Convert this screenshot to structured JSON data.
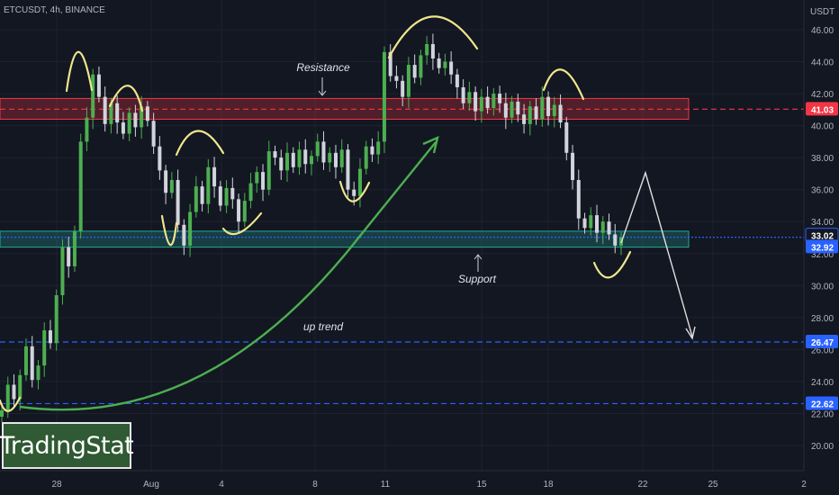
{
  "header": {
    "symbol": "ETCUSDT, 4h, BINANCE"
  },
  "brand": {
    "label": "TradingStat"
  },
  "chart_data": {
    "type": "candlestick",
    "currency": "USDT",
    "ylim": [
      18.6,
      47.4
    ],
    "y_ticks": [
      "46.00",
      "44.00",
      "42.00",
      "40.00",
      "38.00",
      "36.00",
      "34.00",
      "32.00",
      "30.00",
      "28.00",
      "26.00",
      "24.00",
      "22.00",
      "20.00"
    ],
    "x_ticks": [
      "28",
      "Aug",
      "4",
      "8",
      "11",
      "15",
      "18",
      "22",
      "25",
      "2"
    ],
    "price_levels": [
      {
        "value": 41.03,
        "label": "41.03",
        "color": "#f23645",
        "style": "dashed"
      },
      {
        "value": 33.02,
        "label": "33.02",
        "color": "#2962ff",
        "style": "dotted"
      },
      {
        "value": 32.92,
        "label": "32.92",
        "color": "#2962ff",
        "style": "none"
      },
      {
        "value": 26.47,
        "label": "26.47",
        "color": "#2962ff",
        "style": "dashed"
      },
      {
        "value": 22.62,
        "label": "22.62",
        "color": "#2962ff",
        "style": "dashed"
      }
    ],
    "zones": [
      {
        "name": "resistance",
        "from": 40.4,
        "to": 41.7,
        "color": "#f23645"
      },
      {
        "name": "support",
        "from": 32.4,
        "to": 33.4,
        "color": "#26a69a"
      }
    ],
    "annotations": {
      "resistance": "Resistance",
      "support": "Support",
      "trend": "up trend"
    },
    "close_path": [
      22.2,
      23.8,
      22.9,
      24.4,
      26.2,
      24.1,
      25.0,
      27.2,
      26.4,
      29.4,
      32.4,
      31.2,
      33.4,
      39.0,
      40.5,
      43.2,
      41.8,
      40.1,
      41.4,
      40.2,
      39.5,
      40.8,
      39.9,
      41.2,
      40.3,
      38.7,
      37.2,
      35.8,
      36.6,
      33.8,
      32.5,
      34.6,
      36.2,
      35.1,
      37.4,
      36.2,
      35.0,
      36.1,
      35.4,
      34.0,
      35.3,
      36.4,
      37.1,
      36.0,
      38.4,
      38.0,
      37.2,
      38.3,
      37.4,
      38.5,
      37.6,
      38.1,
      39.0,
      37.7,
      38.3,
      37.4,
      38.5,
      36.0,
      35.6,
      37.3,
      38.7,
      38.2,
      39.0,
      44.6,
      43.1,
      42.8,
      41.8,
      43.8,
      43.0,
      44.4,
      45.1,
      44.2,
      43.6,
      44.0,
      43.2,
      42.4,
      41.4,
      42.1,
      40.9,
      41.8,
      41.1,
      42.0,
      41.4,
      40.5,
      41.5,
      40.7,
      40.1,
      41.2,
      40.4,
      41.8,
      40.6,
      41.3,
      40.2,
      38.3,
      36.6,
      34.2,
      33.6,
      34.4,
      33.3,
      34.0,
      33.2,
      32.5,
      33.0
    ]
  }
}
